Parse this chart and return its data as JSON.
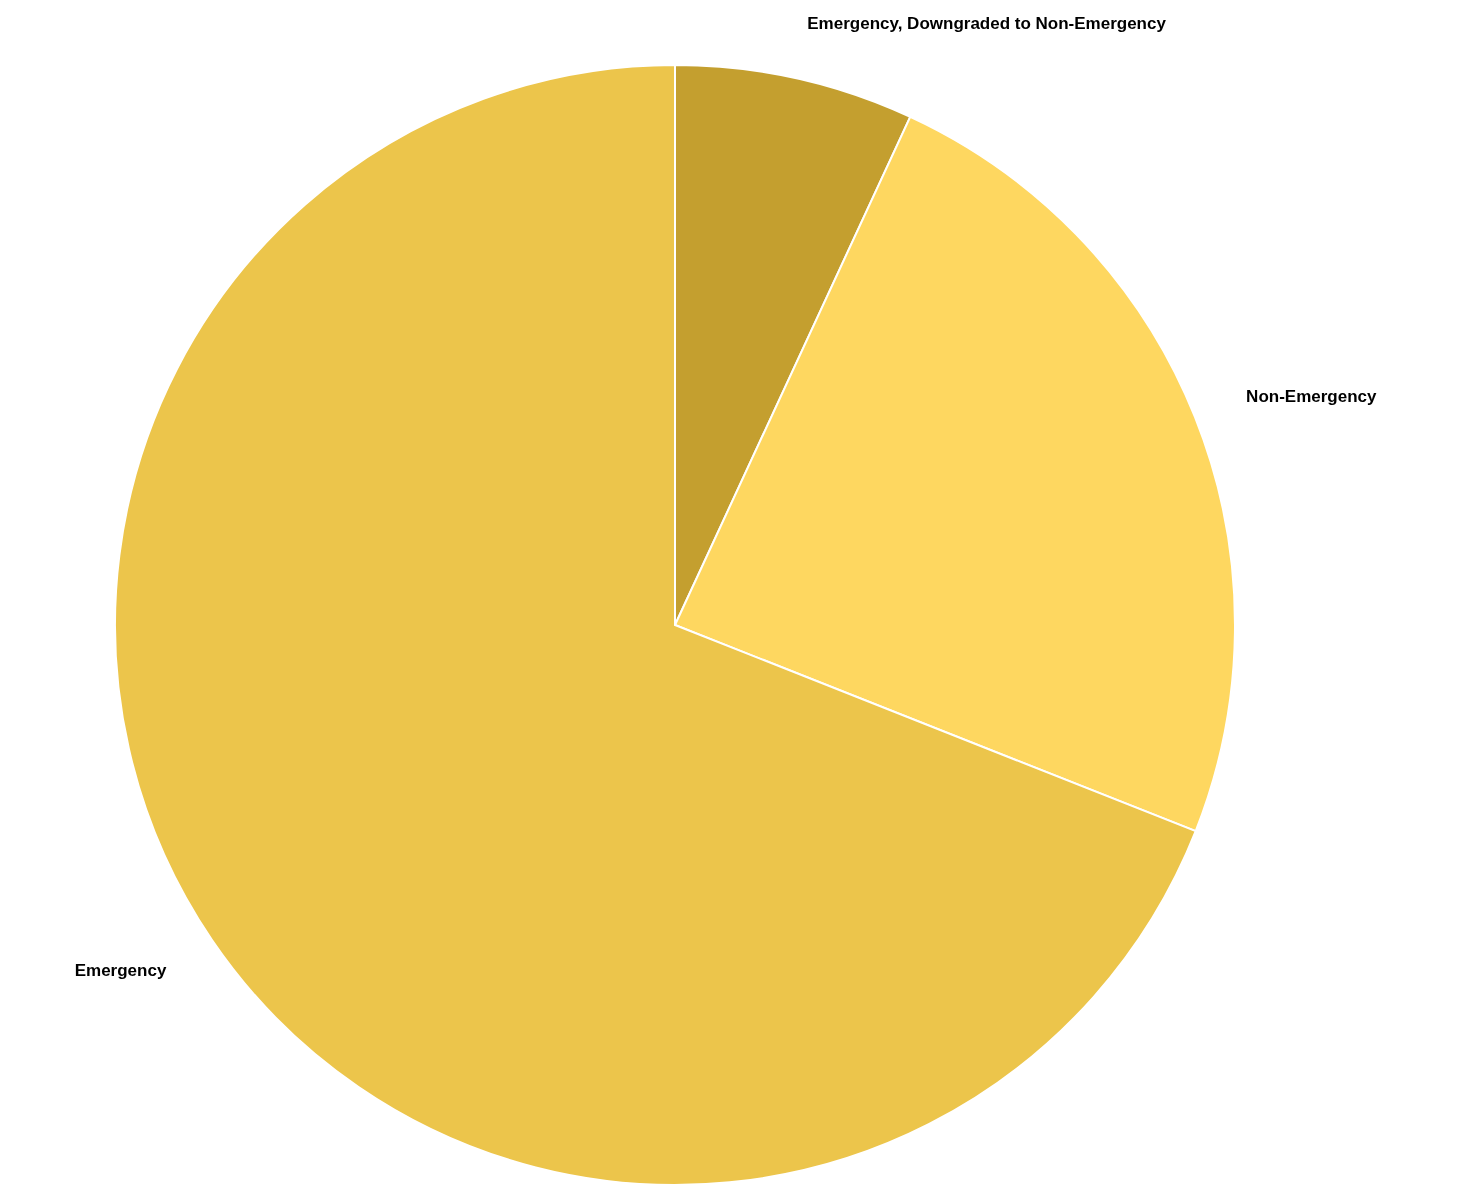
{
  "chart_data": {
    "type": "pie",
    "categories": [
      "Emergency, Downgraded to Non-Emergency",
      "Non-Emergency",
      "Emergency"
    ],
    "values": [
      6.9,
      24.1,
      69.0
    ],
    "colors": [
      "#c49f2f",
      "#fed760",
      "#ecc54b"
    ]
  }
}
